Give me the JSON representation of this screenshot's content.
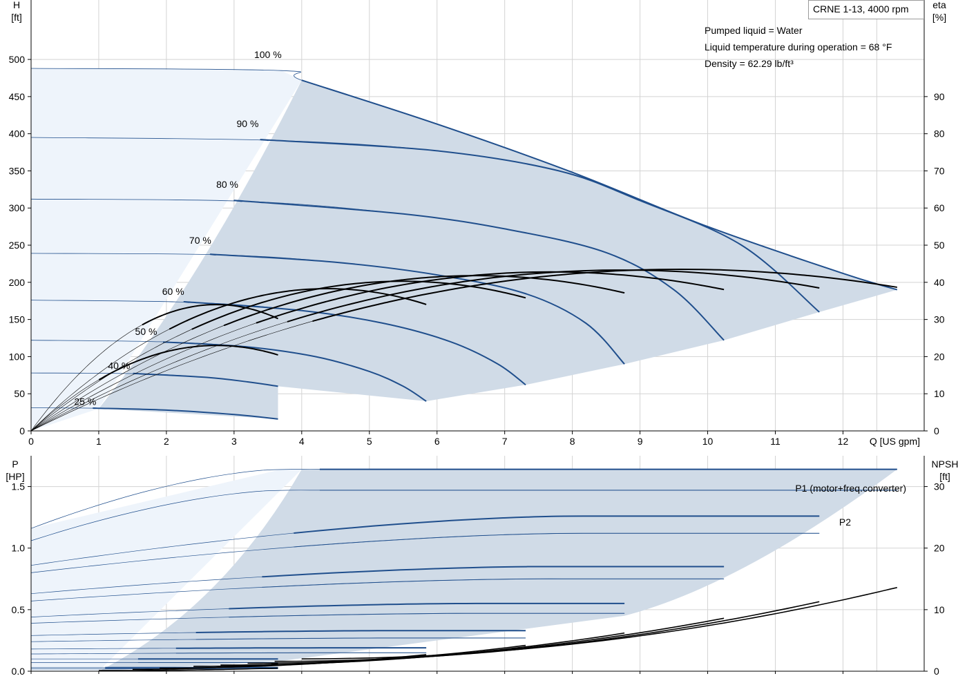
{
  "chart_data": [
    {
      "type": "line",
      "title": "CRNE 1-13, 4000 rpm",
      "annotations": [
        "Pumped liquid = Water",
        "Liquid temperature during operation = 68 °F",
        "Density = 62.29 lb/ft³"
      ],
      "xlabel": "Q [US gpm]",
      "ylabel": "H\n[ft]",
      "y2label": "eta\n[%]",
      "xlim": [
        0,
        13.2
      ],
      "ylim": [
        0,
        580
      ],
      "y2lim": [
        0,
        116
      ],
      "x_ticks": [
        0,
        1,
        2,
        3,
        4,
        5,
        6,
        7,
        8,
        9,
        10,
        11,
        12
      ],
      "y_ticks": [
        0,
        50,
        100,
        150,
        200,
        250,
        300,
        350,
        400,
        450,
        500
      ],
      "y2_ticks": [
        0,
        10,
        20,
        30,
        40,
        50,
        60,
        70,
        80,
        90
      ],
      "grid": true,
      "speed_labels": [
        {
          "label": "100 %",
          "x": 3.5,
          "y": 502
        },
        {
          "label": "90 %",
          "x": 3.2,
          "y": 409
        },
        {
          "label": "80 %",
          "x": 2.9,
          "y": 327
        },
        {
          "label": "70 %",
          "x": 2.5,
          "y": 252
        },
        {
          "label": "60 %",
          "x": 2.1,
          "y": 183
        },
        {
          "label": "50 %",
          "x": 1.7,
          "y": 129
        },
        {
          "label": "40 %",
          "x": 1.3,
          "y": 83
        },
        {
          "label": "25 %",
          "x": 0.8,
          "y": 35
        }
      ],
      "series": [
        {
          "speed": 100,
          "q_max": 12.8,
          "head": [
            [
              0,
              488
            ],
            [
              3.7,
              485
            ],
            [
              4.0,
              472
            ],
            [
              6,
              413
            ],
            [
              8,
              348
            ],
            [
              10,
              275
            ],
            [
              12,
              212
            ],
            [
              12.8,
              190
            ]
          ],
          "eta_max": 43.5
        },
        {
          "speed": 90,
          "q_max": 11.65,
          "head": [
            [
              0,
              395
            ],
            [
              3.6,
              391
            ],
            [
              6,
              377
            ],
            [
              7.8,
              350
            ],
            [
              9,
              310
            ],
            [
              10.5,
              250
            ],
            [
              11.65,
              160
            ]
          ],
          "eta_max": 43.3
        },
        {
          "speed": 80,
          "q_max": 10.24,
          "head": [
            [
              0,
              312
            ],
            [
              3.2,
              309
            ],
            [
              5.5,
              292
            ],
            [
              7,
              272
            ],
            [
              8.5,
              240
            ],
            [
              9.5,
              190
            ],
            [
              10.24,
              122
            ]
          ],
          "eta_max": 42.8
        },
        {
          "speed": 70,
          "q_max": 8.77,
          "head": [
            [
              0,
              239
            ],
            [
              2.8,
              237
            ],
            [
              4.5,
              227
            ],
            [
              6,
              210
            ],
            [
              7.3,
              185
            ],
            [
              8.2,
              145
            ],
            [
              8.77,
              90
            ]
          ],
          "eta_max": 41.8
        },
        {
          "speed": 60,
          "q_max": 7.31,
          "head": [
            [
              0,
              176
            ],
            [
              2.4,
              173
            ],
            [
              4,
              162
            ],
            [
              5.2,
              145
            ],
            [
              6.2,
              120
            ],
            [
              6.9,
              90
            ],
            [
              7.31,
              62
            ]
          ],
          "eta_max": 40.3
        },
        {
          "speed": 50,
          "q_max": 5.84,
          "head": [
            [
              0,
              122
            ],
            [
              1.9,
              120
            ],
            [
              3.2,
              113
            ],
            [
              4.2,
              100
            ],
            [
              5.0,
              80
            ],
            [
              5.5,
              60
            ],
            [
              5.84,
              40
            ]
          ],
          "eta_max": 38.3
        },
        {
          "speed": 40,
          "q_max": 3.65,
          "head": [
            [
              0,
              78
            ],
            [
              1.6,
              77
            ],
            [
              2.6,
              72
            ],
            [
              3.2,
              66
            ],
            [
              3.65,
              60
            ]
          ],
          "eta_max": 34.0
        },
        {
          "speed": 25,
          "q_max": 3.65,
          "head": [
            [
              0,
              31
            ],
            [
              1.0,
              30.5
            ],
            [
              2.0,
              28
            ],
            [
              3.0,
              22
            ],
            [
              3.65,
              16
            ]
          ],
          "eta_max": 23.0
        }
      ]
    },
    {
      "type": "line",
      "xlabel": "Q [US gpm]",
      "ylabel": "P\n[HP]",
      "y2label": "NPSH\n[ft]",
      "xlim": [
        0,
        13.2
      ],
      "ylim": [
        0,
        1.75
      ],
      "y2lim": [
        0,
        35
      ],
      "y_ticks": [
        "0.0",
        "0.5",
        "1.0",
        "1.5"
      ],
      "y2_ticks": [
        0,
        10,
        20,
        30
      ],
      "grid": true,
      "legend": [
        "P1 (motor+freq.converter)",
        "P2"
      ],
      "power_p1": [
        {
          "speed": 100,
          "q_max": 12.8,
          "p_start": 1.16,
          "p_knee": 1.64,
          "q_knee": 3.7,
          "p_end": 1.64
        },
        {
          "speed": 90,
          "q_max": 11.65,
          "p_start": 0.86,
          "p_knee": 1.26,
          "q_knee": 8.0,
          "p_end": 1.26
        },
        {
          "speed": 80,
          "q_max": 10.24,
          "p_start": 0.63,
          "p_knee": 0.85,
          "q_knee": 7.5,
          "p_end": 0.85
        },
        {
          "speed": 70,
          "q_max": 8.77,
          "p_start": 0.44,
          "p_knee": 0.55,
          "q_knee": 6.5,
          "p_end": 0.55
        },
        {
          "speed": 60,
          "q_max": 7.31,
          "p_start": 0.29,
          "p_knee": 0.33,
          "q_knee": 5.5,
          "p_end": 0.33
        },
        {
          "speed": 50,
          "q_max": 5.84,
          "p_start": 0.18,
          "p_knee": 0.19,
          "q_knee": 4.5,
          "p_end": 0.19
        },
        {
          "speed": 40,
          "q_max": 3.65,
          "p_start": 0.1,
          "p_knee": 0.1,
          "q_knee": 3.0,
          "p_end": 0.1
        },
        {
          "speed": 25,
          "q_max": 3.65,
          "p_start": 0.03,
          "p_knee": 0.03,
          "q_knee": 2.0,
          "p_end": 0.03
        }
      ],
      "power_p2": [
        {
          "speed": 100,
          "q_max": 12.8,
          "p_start": 1.06,
          "p_knee": 1.47,
          "q_knee": 3.7,
          "p_end": 1.47
        },
        {
          "speed": 90,
          "q_max": 11.65,
          "p_start": 0.8,
          "p_knee": 1.12,
          "q_knee": 8.0,
          "p_end": 1.12
        },
        {
          "speed": 80,
          "q_max": 10.24,
          "p_start": 0.57,
          "p_knee": 0.75,
          "q_knee": 7.5,
          "p_end": 0.75
        },
        {
          "speed": 70,
          "q_max": 8.77,
          "p_start": 0.39,
          "p_knee": 0.47,
          "q_knee": 6.5,
          "p_end": 0.47
        },
        {
          "speed": 60,
          "q_max": 7.31,
          "p_start": 0.24,
          "p_knee": 0.27,
          "q_knee": 5.5,
          "p_end": 0.27
        },
        {
          "speed": 50,
          "q_max": 5.84,
          "p_start": 0.14,
          "p_knee": 0.15,
          "q_knee": 4.5,
          "p_end": 0.15
        },
        {
          "speed": 40,
          "q_max": 3.65,
          "p_start": 0.07,
          "p_knee": 0.07,
          "q_knee": 3.0,
          "p_end": 0.07
        },
        {
          "speed": 25,
          "q_max": 3.65,
          "p_start": 0.02,
          "p_knee": 0.02,
          "q_knee": 2.0,
          "p_end": 0.02
        }
      ],
      "npsh": [
        {
          "speed": 100,
          "q_min": 4.0,
          "q_max": 12.8,
          "n_min": 2.0,
          "n_max": 13.6
        },
        {
          "speed": 90,
          "q_min": 3.6,
          "q_max": 11.65,
          "n_min": 1.6,
          "n_max": 11.3
        },
        {
          "speed": 80,
          "q_min": 3.2,
          "q_max": 10.24,
          "n_min": 1.3,
          "n_max": 8.6
        },
        {
          "speed": 70,
          "q_min": 2.8,
          "q_max": 8.77,
          "n_min": 1.0,
          "n_max": 6.2
        },
        {
          "speed": 60,
          "q_min": 2.4,
          "q_max": 7.31,
          "n_min": 0.8,
          "n_max": 4.2
        },
        {
          "speed": 50,
          "q_min": 1.9,
          "q_max": 5.84,
          "n_min": 0.5,
          "n_max": 2.7
        },
        {
          "speed": 40,
          "q_min": 1.5,
          "q_max": 3.65,
          "n_min": 0.3,
          "n_max": 1.2
        },
        {
          "speed": 25,
          "q_min": 1.0,
          "q_max": 3.65,
          "n_min": 0.1,
          "n_max": 0.5
        }
      ]
    }
  ],
  "colors": {
    "curve_blue": "#1f4e8c",
    "area_fill": "#d0dbe7",
    "area_light": "#eef4fb",
    "grid": "#d3d3d3",
    "eta_line": "#000000"
  }
}
